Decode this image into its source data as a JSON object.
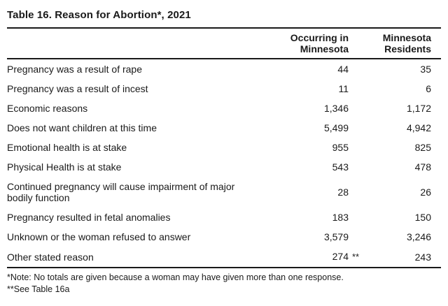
{
  "title": "Table 16. Reason for Abortion*, 2021",
  "colors": {
    "text": "#1a1a1a",
    "rule": "#1a1a1a",
    "background": "#ffffff"
  },
  "table": {
    "headers": {
      "occurring": {
        "line1": "Occurring in",
        "line2": "Minnesota"
      },
      "residents": {
        "line1": "Minnesota",
        "line2": "Residents"
      }
    },
    "rows": [
      {
        "reason": "Pregnancy was a result of rape",
        "occurring": "44",
        "occurring_suffix": "",
        "residents": "35"
      },
      {
        "reason": "Pregnancy was a result of incest",
        "occurring": "11",
        "occurring_suffix": "",
        "residents": "6"
      },
      {
        "reason": "Economic reasons",
        "occurring": "1,346",
        "occurring_suffix": "",
        "residents": "1,172"
      },
      {
        "reason": "Does not want children at this time",
        "occurring": "5,499",
        "occurring_suffix": "",
        "residents": "4,942"
      },
      {
        "reason": "Emotional health is at stake",
        "occurring": "955",
        "occurring_suffix": "",
        "residents": "825"
      },
      {
        "reason": "Physical Health is at stake",
        "occurring": "543",
        "occurring_suffix": "",
        "residents": "478"
      },
      {
        "reason": "Continued pregnancy will cause impairment of major bodily function",
        "occurring": "28",
        "occurring_suffix": "",
        "residents": "26"
      },
      {
        "reason": "Pregnancy resulted in fetal anomalies",
        "occurring": "183",
        "occurring_suffix": "",
        "residents": "150"
      },
      {
        "reason": "Unknown or the woman refused to answer",
        "occurring": "3,579",
        "occurring_suffix": "",
        "residents": "3,246"
      },
      {
        "reason": "Other stated reason",
        "occurring": "274",
        "occurring_suffix": "**",
        "residents": "243"
      }
    ]
  },
  "footnotes": [
    "*Note: No totals are given because a woman may have given more than one response.",
    "**See Table 16a"
  ]
}
